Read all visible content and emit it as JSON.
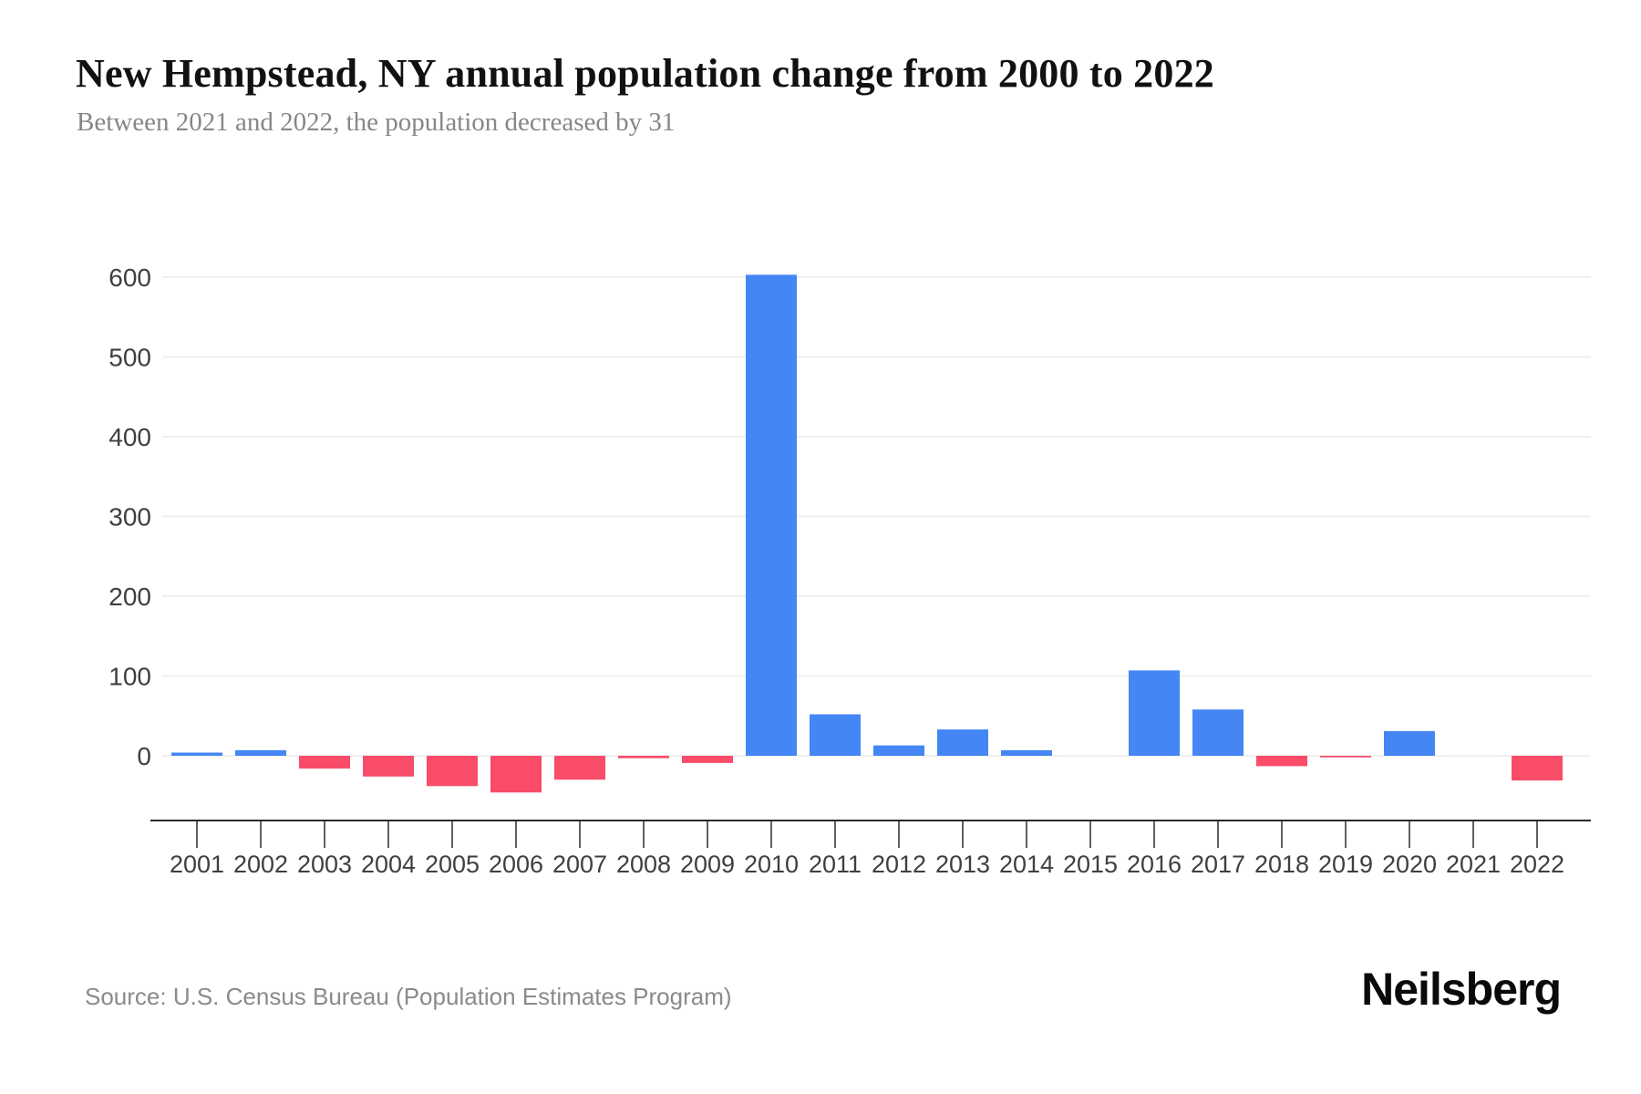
{
  "header": {
    "title": "New Hempstead, NY annual population change from 2000 to 2022",
    "subtitle": "Between 2021 and 2022, the population decreased by 31"
  },
  "footer": {
    "source": "Source: U.S. Census Bureau (Population Estimates Program)",
    "brand": "Neilsberg"
  },
  "chart_data": {
    "type": "bar",
    "title": "New Hempstead, NY annual population change from 2000 to 2022",
    "subtitle": "Between 2021 and 2022, the population decreased by 31",
    "categories": [
      "2001",
      "2002",
      "2003",
      "2004",
      "2005",
      "2006",
      "2007",
      "2008",
      "2009",
      "2010",
      "2011",
      "2012",
      "2013",
      "2014",
      "2015",
      "2016",
      "2017",
      "2018",
      "2019",
      "2020",
      "2021",
      "2022"
    ],
    "values": [
      4,
      7,
      -16,
      -26,
      -38,
      -46,
      -30,
      -3,
      -9,
      603,
      52,
      13,
      33,
      7,
      0,
      107,
      58,
      -13,
      -2,
      31,
      0,
      -31
    ],
    "xlabel": "",
    "ylabel": "",
    "yticks": [
      0,
      100,
      200,
      300,
      400,
      500,
      600
    ],
    "ylim": [
      -80,
      620
    ],
    "grid": true,
    "legend": "none",
    "positive_color": "#4486f4",
    "negative_color": "#f94c68",
    "zero_bar_color": "#f0f0f0",
    "gridline_color": "#efefef",
    "axis_line_color": "#2b2b2b",
    "tick_label_color": "#3f3f3f"
  }
}
